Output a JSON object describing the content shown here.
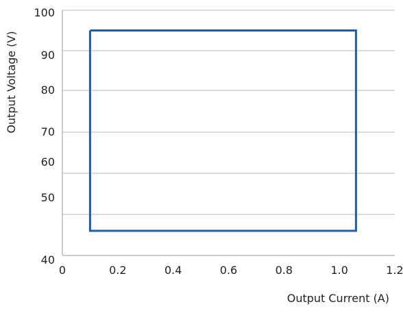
{
  "chart_data": {
    "type": "line",
    "title": "",
    "xlabel": "Output Current (A)",
    "ylabel": "Output Voltage (V)",
    "xlim": [
      0,
      1.2
    ],
    "x_ticks": [
      {
        "value": 0,
        "label": "0"
      },
      {
        "value": 0.2,
        "label": "0.2"
      },
      {
        "value": 0.4,
        "label": "0.4"
      },
      {
        "value": 0.6,
        "label": "0.6"
      },
      {
        "value": 0.8,
        "label": "0.8"
      },
      {
        "value": 1.0,
        "label": "1.0"
      },
      {
        "value": 1.2,
        "label": "1.2"
      }
    ],
    "y_ticks_labels": [
      "100",
      "90",
      "80",
      "70",
      "60",
      "50",
      "40"
    ],
    "y_grid_labels_order": "top-to-bottom",
    "grid": {
      "horizontal": true,
      "vertical": false
    },
    "legend": "none",
    "series": [
      {
        "color": "#1f5fa6",
        "points": [
          {
            "x": 0.1,
            "y": 95
          },
          {
            "x": 1.06,
            "y": 95
          },
          {
            "x": 1.06,
            "y": 46
          },
          {
            "x": 0.1,
            "y": 46
          },
          {
            "x": 0.1,
            "y": 95
          }
        ]
      }
    ],
    "colors": {
      "series": "#1f5fa6",
      "grid": "#b8b8b8",
      "axis": "#9a9a9a",
      "text": "#222222"
    }
  }
}
